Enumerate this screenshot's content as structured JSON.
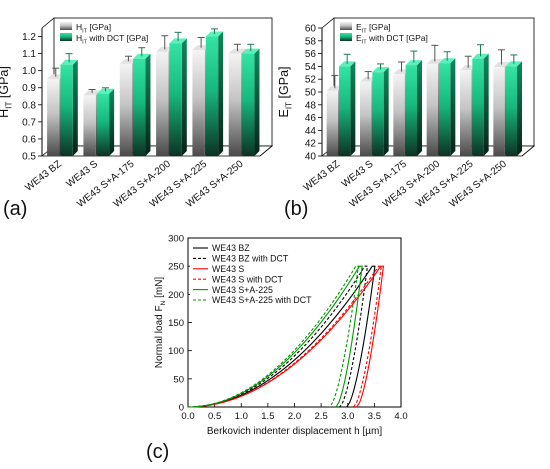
{
  "panel_labels": [
    "(a)",
    "(b)",
    "(c)"
  ],
  "colors": {
    "gray_top": "#f4f4f4",
    "gray_mid": "#c4c4c4",
    "gray_bottom": "#4a4a4a",
    "green_top": "#34e3a4",
    "green_mid": "#16b87e",
    "green_bottom": "#0b3324",
    "black": "#000000",
    "red": "#ff0000",
    "green": "#009900"
  },
  "chart_data": [
    {
      "type": "bar",
      "title": "",
      "ylabel": "H_IT [GPa]",
      "ylabel_main": "H",
      "ylabel_sub": "IT",
      "ylabel_rest": " [GPa]",
      "ylim": [
        0.5,
        1.25
      ],
      "yticks": [
        "0.5",
        "0.6",
        "0.7",
        "0.8",
        "0.9",
        "1.0",
        "1.1",
        "1.2"
      ],
      "categories": [
        "WE43 BZ",
        "WE43 S",
        "WE43 S+A-175",
        "WE43 S+A-200",
        "WE43 S+A-225",
        "WE43 S+A-250"
      ],
      "legend": {
        "position": "top-left",
        "entries": [
          {
            "main": "H",
            "sub": "IT",
            "rest": " [GPa]"
          },
          {
            "main": "H",
            "sub": "IT",
            "rest": " with DCT [GPa]"
          }
        ]
      },
      "series": [
        {
          "name": "H_IT [GPa]",
          "style": "gray",
          "values": [
            0.95,
            0.855,
            1.04,
            1.11,
            1.12,
            1.1
          ],
          "errors": [
            0.05,
            0.02,
            0.03,
            0.08,
            0.06,
            0.04
          ]
        },
        {
          "name": "H_IT with DCT [GPa]",
          "style": "green",
          "values": [
            1.035,
            0.865,
            1.07,
            1.16,
            1.2,
            1.1
          ],
          "errors": [
            0.05,
            0.02,
            0.05,
            0.05,
            0.03,
            0.04
          ]
        }
      ]
    },
    {
      "type": "bar",
      "title": "",
      "ylabel": "E_IT [GPa]",
      "ylabel_main": "E",
      "ylabel_sub": "IT",
      "ylabel_rest": " [GPa]",
      "ylim": [
        40,
        60
      ],
      "yticks": [
        "40",
        "42",
        "44",
        "46",
        "48",
        "50",
        "52",
        "54",
        "56",
        "58",
        "60"
      ],
      "categories": [
        "WE43 BZ",
        "WE43 S",
        "WE43 S+A-175",
        "WE43 S+A-200",
        "WE43 S+A-225",
        "WE43 S+A-250"
      ],
      "legend": {
        "position": "top-left",
        "entries": [
          {
            "main": "E",
            "sub": "IT",
            "rest": " [GPa]"
          },
          {
            "main": "E",
            "sub": "IT",
            "rest": " with DCT [GPa]"
          }
        ]
      },
      "series": [
        {
          "name": "E_IT [GPa]",
          "style": "gray",
          "values": [
            50.2,
            51.6,
            52.8,
            54.4,
            53.4,
            53.9
          ],
          "errors": [
            2.0,
            1.2,
            1.5,
            2.5,
            1.8,
            2.3
          ]
        },
        {
          "name": "E_IT with DCT [GPa]",
          "style": "green",
          "values": [
            54.0,
            53.1,
            54.2,
            54.5,
            55.2,
            54.0
          ],
          "errors": [
            1.5,
            0.9,
            1.8,
            1.4,
            1.8,
            1.4
          ]
        }
      ]
    },
    {
      "type": "line",
      "title": "",
      "xlabel": "Berkovich indenter displacement h [µm]",
      "ylabel": "Normal load F_N [mN]",
      "ylabel_main": "Normal load F",
      "ylabel_sub": "N",
      "ylabel_rest": " [mN]",
      "xlim": [
        0,
        4.0
      ],
      "ylim": [
        0,
        300
      ],
      "xticks": [
        "0.0",
        "0.5",
        "1.0",
        "1.5",
        "2.0",
        "2.5",
        "3.0",
        "3.5",
        "4.0"
      ],
      "yticks": [
        "0",
        "50",
        "100",
        "150",
        "200",
        "250",
        "300"
      ],
      "legend": {
        "position": "top-right"
      },
      "series": [
        {
          "name": "WE43 BZ",
          "color": "black",
          "dash": false,
          "hmax": 3.46,
          "hf": 2.98
        },
        {
          "name": "WE43 BZ with DCT",
          "color": "black",
          "dash": true,
          "hmax": 3.32,
          "hf": 2.85
        },
        {
          "name": "WE43 S",
          "color": "red",
          "dash": false,
          "hmax": 3.62,
          "hf": 3.17
        },
        {
          "name": "WE43 S with DCT",
          "color": "red",
          "dash": true,
          "hmax": 3.58,
          "hf": 3.11
        },
        {
          "name": "WE43 S+A-225",
          "color": "green",
          "dash": false,
          "hmax": 3.22,
          "hf": 2.78
        },
        {
          "name": "WE43 S+A-225 with DCT",
          "color": "green",
          "dash": true,
          "hmax": 3.15,
          "hf": 2.66
        }
      ],
      "fmax": 250
    }
  ]
}
